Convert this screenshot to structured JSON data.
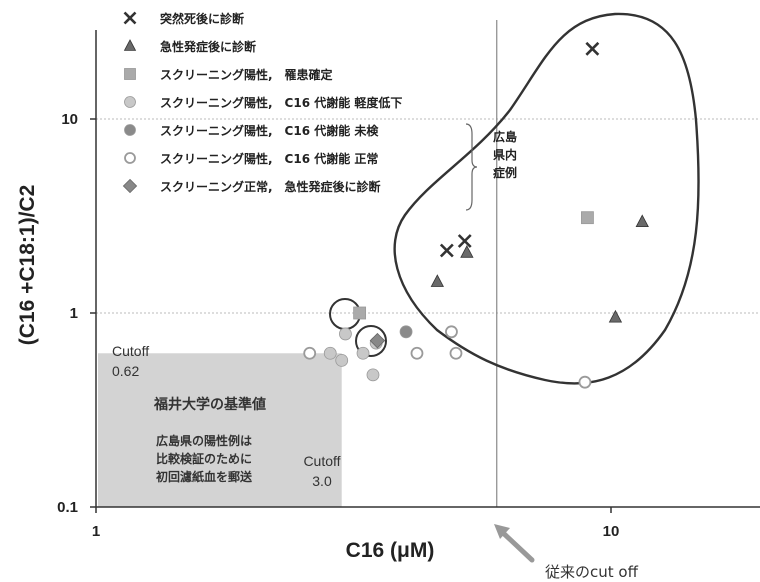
{
  "chart_data": {
    "type": "scatter",
    "xscale": "log",
    "yscale": "log",
    "xlim": [
      1,
      20
    ],
    "ylim": [
      0.1,
      30
    ],
    "xlabel": "C16 (μM)",
    "ylabel": "(C16 +C18:1)/C2",
    "x_ticks": [
      {
        "value": 1,
        "label": "1"
      },
      {
        "value": 10,
        "label": "10"
      }
    ],
    "y_ticks": [
      {
        "value": 0.1,
        "label": "0.1"
      },
      {
        "value": 1,
        "label": "1"
      },
      {
        "value": 10,
        "label": "10"
      }
    ],
    "grid": "horizontal",
    "legend_position": "top-left",
    "series": [
      {
        "key": "x",
        "name": "突然死後に診断",
        "marker": "x",
        "color": "#333333",
        "points": [
          [
            9.2,
            23
          ],
          [
            4.8,
            2.1
          ],
          [
            5.2,
            2.35
          ]
        ]
      },
      {
        "key": "tri",
        "name": "急性発症後に診断",
        "marker": "triangle",
        "color": "#6a6a6a",
        "points": [
          [
            4.6,
            1.45
          ],
          [
            5.25,
            2.05
          ],
          [
            11.5,
            2.95
          ],
          [
            10.2,
            0.95
          ]
        ]
      },
      {
        "key": "sq",
        "name": "スクリーニング陽性,　罹患確定",
        "marker": "square",
        "color": "#aaaaaa",
        "points": [
          [
            3.25,
            1.0
          ],
          [
            9.0,
            3.1
          ]
        ]
      },
      {
        "key": "lightcirc",
        "name": "スクリーニング陽性,　C16 代謝能 軽度低下",
        "marker": "circle",
        "color": "#c8c8c8",
        "points": [
          [
            2.85,
            0.62
          ],
          [
            3.05,
            0.78
          ],
          [
            3.3,
            0.62
          ],
          [
            3.5,
            0.7
          ],
          [
            3.45,
            0.48
          ],
          [
            3.0,
            0.57
          ]
        ]
      },
      {
        "key": "darkcirc",
        "name": "スクリーニング陽性,　C16 代謝能 未検",
        "marker": "circle",
        "color": "#8a8a8a",
        "points": [
          [
            4.0,
            0.8
          ]
        ]
      },
      {
        "key": "opencirc",
        "name": "スクリーニング陽性,　C16 代謝能 正常",
        "marker": "open-circle",
        "color": "#9a9a9a",
        "points": [
          [
            2.6,
            0.62
          ],
          [
            4.2,
            0.62
          ],
          [
            4.9,
            0.8
          ],
          [
            5.0,
            0.62
          ],
          [
            8.9,
            0.44
          ]
        ]
      },
      {
        "key": "diamond",
        "name": "スクリーニング正常,　急性発症後に診断",
        "marker": "diamond",
        "color": "#888888",
        "points": [
          [
            3.52,
            0.72
          ]
        ]
      }
    ],
    "annotations": {
      "region_label": [
        "広島",
        "県内",
        "症例"
      ],
      "cutoff_y_label": [
        "Cutoff",
        "0.62"
      ],
      "cutoff_x_label": [
        "Cutoff",
        "3.0"
      ],
      "box_title": "福井大学の基準値",
      "box_note": [
        "広島県の陽性例は",
        "比較検証のために",
        "初回濾紙血を郵送"
      ],
      "reference_x": 6.0,
      "reference_label": "従来のcut off",
      "cutoff_x": 3.0,
      "cutoff_y": 0.62
    }
  }
}
